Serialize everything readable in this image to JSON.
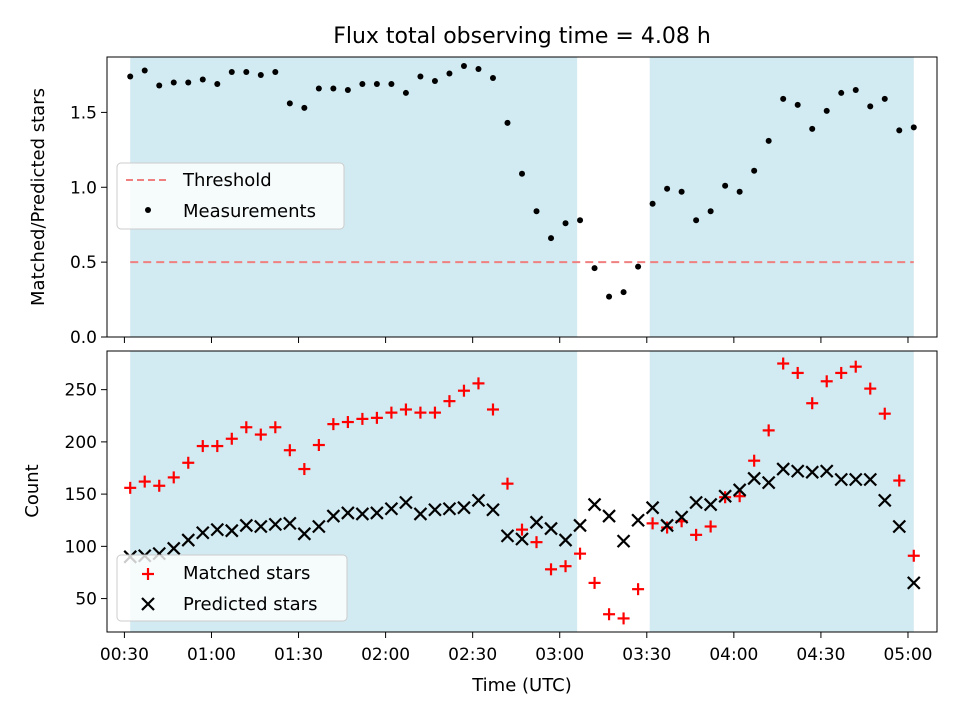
{
  "figure": {
    "title": "Flux total observing time = 4.08 h",
    "xlabel": "Time (UTC)"
  },
  "chart_data": [
    {
      "type": "scatter",
      "panel": "top",
      "ylabel": "Matched/Predicted stars",
      "xlim": [
        "00:24",
        "05:10"
      ],
      "ylim": [
        0,
        1.87
      ],
      "x_ticks": [
        "00:30",
        "01:00",
        "01:30",
        "02:00",
        "02:30",
        "03:00",
        "03:30",
        "04:00",
        "04:30",
        "05:00"
      ],
      "y_ticks": [
        "0.0",
        "0.5",
        "1.0",
        "1.5"
      ],
      "shaded_intervals": [
        [
          "00:32",
          "03:06"
        ],
        [
          "03:31",
          "05:02"
        ]
      ],
      "shade_color": "#add8e6",
      "threshold": {
        "name": "Threshold",
        "value": 0.5,
        "color": "#f08080"
      },
      "legend_position": "center-left",
      "series": [
        {
          "name": "Measurements",
          "color": "#000000",
          "x": [
            "00:32",
            "00:37",
            "00:42",
            "00:47",
            "00:52",
            "00:57",
            "01:02",
            "01:07",
            "01:12",
            "01:17",
            "01:22",
            "01:27",
            "01:32",
            "01:37",
            "01:42",
            "01:47",
            "01:52",
            "01:57",
            "02:02",
            "02:07",
            "02:12",
            "02:17",
            "02:22",
            "02:27",
            "02:32",
            "02:37",
            "02:42",
            "02:47",
            "02:52",
            "02:57",
            "03:02",
            "03:07",
            "03:12",
            "03:17",
            "03:22",
            "03:27",
            "03:32",
            "03:37",
            "03:42",
            "03:47",
            "03:52",
            "03:57",
            "04:02",
            "04:07",
            "04:12",
            "04:17",
            "04:22",
            "04:27",
            "04:32",
            "04:37",
            "04:42",
            "04:47",
            "04:52",
            "04:57",
            "05:02"
          ],
          "y": [
            1.74,
            1.78,
            1.68,
            1.7,
            1.7,
            1.72,
            1.69,
            1.77,
            1.77,
            1.75,
            1.77,
            1.56,
            1.53,
            1.66,
            1.66,
            1.65,
            1.69,
            1.69,
            1.69,
            1.63,
            1.74,
            1.71,
            1.76,
            1.81,
            1.79,
            1.73,
            1.43,
            1.09,
            0.84,
            0.66,
            0.76,
            0.78,
            0.46,
            0.27,
            0.3,
            0.47,
            0.89,
            0.99,
            0.97,
            0.78,
            0.84,
            1.01,
            0.97,
            1.11,
            1.31,
            1.59,
            1.55,
            1.39,
            1.51,
            1.63,
            1.65,
            1.54,
            1.59,
            1.38,
            1.4
          ]
        }
      ]
    },
    {
      "type": "scatter",
      "panel": "bottom",
      "ylabel": "Count",
      "xlim": [
        "00:24",
        "05:10"
      ],
      "ylim": [
        18,
        287
      ],
      "x_ticks": [
        "00:30",
        "01:00",
        "01:30",
        "02:00",
        "02:30",
        "03:00",
        "03:30",
        "04:00",
        "04:30",
        "05:00"
      ],
      "y_ticks": [
        "50",
        "100",
        "150",
        "200",
        "250"
      ],
      "shaded_intervals": [
        [
          "00:32",
          "03:06"
        ],
        [
          "03:31",
          "05:02"
        ]
      ],
      "shade_color": "#add8e6",
      "legend_position": "lower-left",
      "series": [
        {
          "name": "Matched stars",
          "marker": "plus",
          "color": "#ff0000",
          "x": [
            "00:32",
            "00:37",
            "00:42",
            "00:47",
            "00:52",
            "00:57",
            "01:02",
            "01:07",
            "01:12",
            "01:17",
            "01:22",
            "01:27",
            "01:32",
            "01:37",
            "01:42",
            "01:47",
            "01:52",
            "01:57",
            "02:02",
            "02:07",
            "02:12",
            "02:17",
            "02:22",
            "02:27",
            "02:32",
            "02:37",
            "02:42",
            "02:47",
            "02:52",
            "02:57",
            "03:02",
            "03:07",
            "03:12",
            "03:17",
            "03:22",
            "03:27",
            "03:32",
            "03:37",
            "03:42",
            "03:47",
            "03:52",
            "03:57",
            "04:02",
            "04:07",
            "04:12",
            "04:17",
            "04:22",
            "04:27",
            "04:32",
            "04:37",
            "04:42",
            "04:47",
            "04:52",
            "04:57",
            "05:02"
          ],
          "y": [
            156,
            162,
            158,
            166,
            180,
            196,
            196,
            203,
            214,
            207,
            214,
            192,
            174,
            197,
            217,
            219,
            222,
            223,
            228,
            231,
            228,
            228,
            239,
            249,
            256,
            231,
            160,
            116,
            104,
            78,
            81,
            93,
            65,
            35,
            31,
            59,
            122,
            118,
            124,
            111,
            119,
            147,
            148,
            182,
            211,
            275,
            266,
            237,
            258,
            266,
            272,
            251,
            227,
            163,
            91
          ]
        },
        {
          "name": "Predicted stars",
          "marker": "x",
          "color": "#000000",
          "x": [
            "00:32",
            "00:37",
            "00:42",
            "00:47",
            "00:52",
            "00:57",
            "01:02",
            "01:07",
            "01:12",
            "01:17",
            "01:22",
            "01:27",
            "01:32",
            "01:37",
            "01:42",
            "01:47",
            "01:52",
            "01:57",
            "02:02",
            "02:07",
            "02:12",
            "02:17",
            "02:22",
            "02:27",
            "02:32",
            "02:37",
            "02:42",
            "02:47",
            "02:52",
            "02:57",
            "03:02",
            "03:07",
            "03:12",
            "03:17",
            "03:22",
            "03:27",
            "03:32",
            "03:37",
            "03:42",
            "03:47",
            "03:52",
            "03:57",
            "04:02",
            "04:07",
            "04:12",
            "04:17",
            "04:22",
            "04:27",
            "04:32",
            "04:37",
            "04:42",
            "04:47",
            "04:52",
            "04:57",
            "05:02"
          ],
          "y": [
            90,
            91,
            93,
            98,
            106,
            113,
            116,
            115,
            120,
            119,
            121,
            122,
            112,
            119,
            129,
            132,
            131,
            132,
            136,
            142,
            131,
            135,
            136,
            137,
            144,
            135,
            110,
            107,
            123,
            117,
            106,
            120,
            140,
            129,
            105,
            125,
            137,
            120,
            128,
            142,
            140,
            148,
            154,
            165,
            161,
            174,
            172,
            171,
            172,
            164,
            164,
            164,
            144,
            119,
            65
          ]
        }
      ]
    }
  ]
}
